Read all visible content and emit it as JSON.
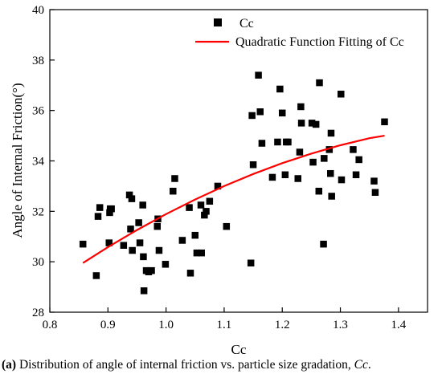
{
  "chart_data": {
    "type": "scatter",
    "xlabel": "Cc",
    "ylabel": "Angle of Internal Friction(°)",
    "xlim": [
      0.8,
      1.45
    ],
    "ylim": [
      28,
      40
    ],
    "x_ticks": [
      "0.8",
      "0.9",
      "1.0",
      "1.1",
      "1.2",
      "1.3",
      "1.4"
    ],
    "y_ticks": [
      "28",
      "30",
      "32",
      "34",
      "36",
      "38",
      "40"
    ],
    "legend_position": "top-right",
    "grid": false,
    "colors": {
      "points": "#000000",
      "fit": "#ff0000"
    },
    "series": [
      {
        "name": "Cc",
        "kind": "scatter",
        "points": [
          [
            0.857,
            30.7
          ],
          [
            0.88,
            29.45
          ],
          [
            0.883,
            31.8
          ],
          [
            0.886,
            32.15
          ],
          [
            0.902,
            30.75
          ],
          [
            0.903,
            31.95
          ],
          [
            0.904,
            32.1
          ],
          [
            0.906,
            32.1
          ],
          [
            0.927,
            30.65
          ],
          [
            0.937,
            32.65
          ],
          [
            0.939,
            31.3
          ],
          [
            0.941,
            32.5
          ],
          [
            0.942,
            30.45
          ],
          [
            0.953,
            31.55
          ],
          [
            0.955,
            30.75
          ],
          [
            0.96,
            32.25
          ],
          [
            0.961,
            30.2
          ],
          [
            0.962,
            28.85
          ],
          [
            0.966,
            29.65
          ],
          [
            0.97,
            29.6
          ],
          [
            0.975,
            29.65
          ],
          [
            0.985,
            31.4
          ],
          [
            0.986,
            31.7
          ],
          [
            0.988,
            30.45
          ],
          [
            0.999,
            29.9
          ],
          [
            1.012,
            32.8
          ],
          [
            1.015,
            33.3
          ],
          [
            1.028,
            30.85
          ],
          [
            1.04,
            32.15
          ],
          [
            1.042,
            29.55
          ],
          [
            1.05,
            31.05
          ],
          [
            1.053,
            30.35
          ],
          [
            1.06,
            32.25
          ],
          [
            1.061,
            30.35
          ],
          [
            1.066,
            31.85
          ],
          [
            1.069,
            32.0
          ],
          [
            1.075,
            32.4
          ],
          [
            1.089,
            33.0
          ],
          [
            1.104,
            31.4
          ],
          [
            1.146,
            29.95
          ],
          [
            1.148,
            35.8
          ],
          [
            1.15,
            33.85
          ],
          [
            1.159,
            37.4
          ],
          [
            1.162,
            35.95
          ],
          [
            1.165,
            34.7
          ],
          [
            1.183,
            33.35
          ],
          [
            1.192,
            34.75
          ],
          [
            1.196,
            36.85
          ],
          [
            1.2,
            35.9
          ],
          [
            1.205,
            33.45
          ],
          [
            1.207,
            34.75
          ],
          [
            1.21,
            34.75
          ],
          [
            1.227,
            33.3
          ],
          [
            1.23,
            34.35
          ],
          [
            1.232,
            36.15
          ],
          [
            1.233,
            35.5
          ],
          [
            1.251,
            35.5
          ],
          [
            1.253,
            33.95
          ],
          [
            1.258,
            35.45
          ],
          [
            1.263,
            32.8
          ],
          [
            1.264,
            37.1
          ],
          [
            1.271,
            30.7
          ],
          [
            1.272,
            34.1
          ],
          [
            1.281,
            34.45
          ],
          [
            1.283,
            33.5
          ],
          [
            1.284,
            35.1
          ],
          [
            1.285,
            32.6
          ],
          [
            1.301,
            36.65
          ],
          [
            1.302,
            33.25
          ],
          [
            1.322,
            34.45
          ],
          [
            1.327,
            33.45
          ],
          [
            1.332,
            34.05
          ],
          [
            1.358,
            33.2
          ],
          [
            1.36,
            32.75
          ],
          [
            1.376,
            35.55
          ]
        ]
      },
      {
        "name": "Quadratic Function Fitting of Cc",
        "kind": "line",
        "points": [
          [
            0.857,
            29.95
          ],
          [
            0.9,
            30.58
          ],
          [
            0.95,
            31.26
          ],
          [
            1.0,
            31.89
          ],
          [
            1.05,
            32.47
          ],
          [
            1.1,
            33.0
          ],
          [
            1.15,
            33.48
          ],
          [
            1.2,
            33.91
          ],
          [
            1.25,
            34.29
          ],
          [
            1.3,
            34.62
          ],
          [
            1.35,
            34.9
          ],
          [
            1.376,
            35.0
          ]
        ]
      }
    ]
  },
  "caption": {
    "label": "(a)",
    "text": " Distribution of angle of internal friction vs. particle size gradation, ",
    "var": "Cc",
    "end": "."
  }
}
